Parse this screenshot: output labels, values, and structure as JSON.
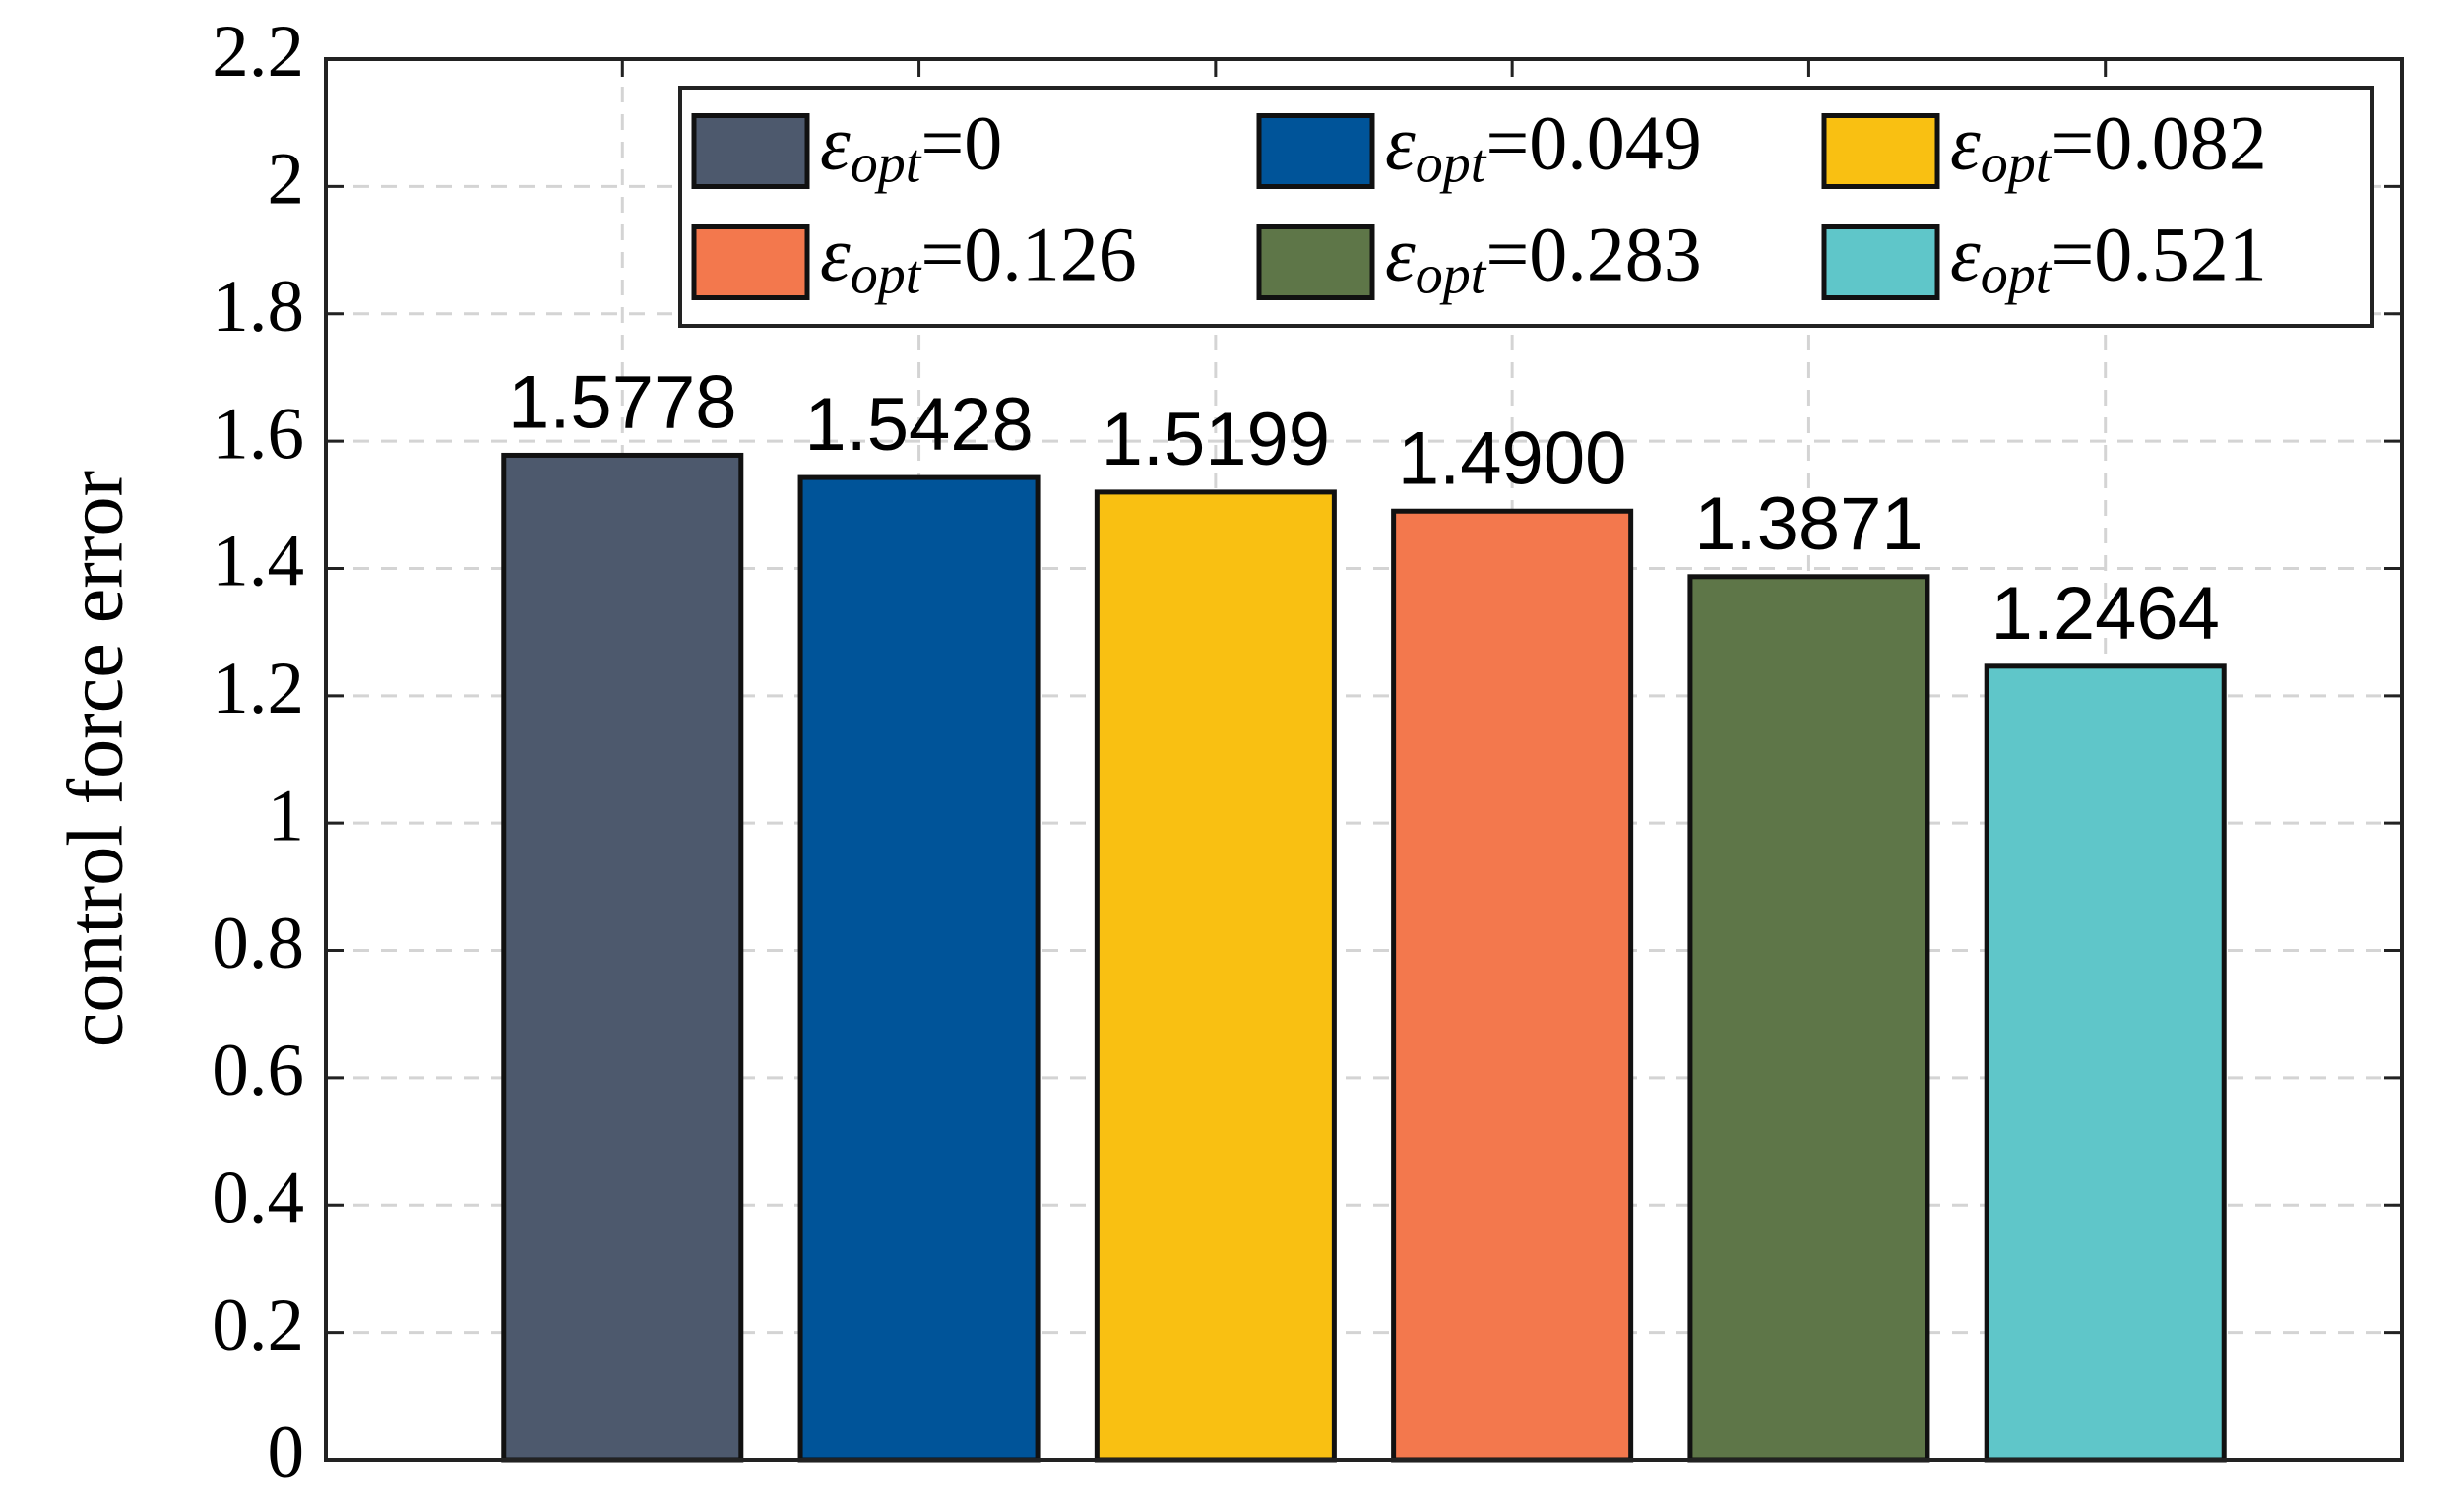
{
  "chart_data": {
    "type": "bar",
    "y_label": "control force error",
    "xlim": [
      0,
      7
    ],
    "xticks": [
      1,
      2,
      3,
      4,
      5,
      6
    ],
    "ylim": [
      0,
      2.2
    ],
    "yticks": [
      0,
      0.2,
      0.4,
      0.6,
      0.8,
      1,
      1.2,
      1.4,
      1.6,
      1.8,
      2,
      2.2
    ],
    "grid": true,
    "legend": "top-right",
    "legend_columns": 3,
    "series": [
      {
        "name": "εopt=0",
        "color": "#4d596d",
        "x": [
          1
        ],
        "values": [
          1.5778
        ],
        "value_labels": [
          "1.5778"
        ]
      },
      {
        "name": "εopt=0.049",
        "color": "#005499",
        "x": [
          2
        ],
        "values": [
          1.5428
        ],
        "value_labels": [
          "1.5428"
        ]
      },
      {
        "name": "εopt=0.082",
        "color": "#f9c012",
        "x": [
          3
        ],
        "values": [
          1.5199
        ],
        "value_labels": [
          "1.5199"
        ]
      },
      {
        "name": "εopt=0.126",
        "color": "#f3784d",
        "x": [
          4
        ],
        "values": [
          1.49
        ],
        "value_labels": [
          "1.4900"
        ]
      },
      {
        "name": "εopt=0.283",
        "color": "#5e7648",
        "x": [
          5
        ],
        "values": [
          1.3871
        ],
        "value_labels": [
          "1.3871"
        ]
      },
      {
        "name": "εopt=0.521",
        "color": "#5fc6c9",
        "x": [
          6
        ],
        "values": [
          1.2464
        ],
        "value_labels": [
          "1.2464"
        ]
      }
    ]
  }
}
